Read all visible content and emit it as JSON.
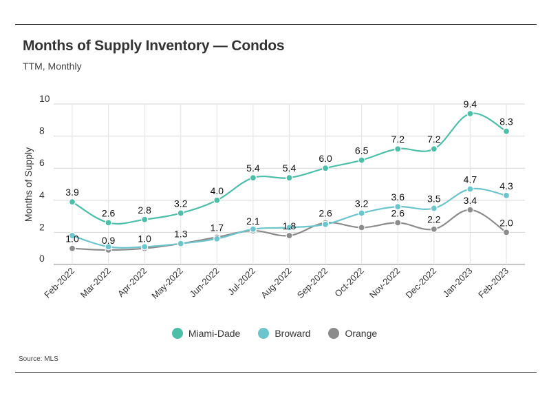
{
  "header": {
    "title": "Months of Supply Inventory — Condos",
    "subtitle": "TTM, Monthly"
  },
  "footer": {
    "source": "Source: MLS"
  },
  "colors": {
    "Miami-Dade": "#4dbfa8",
    "Broward": "#6cc4cc",
    "Orange": "#8c8c8c"
  },
  "chart_data": {
    "type": "line",
    "title": "Months of Supply Inventory — Condos",
    "subtitle": "TTM, Monthly",
    "xlabel": "",
    "ylabel": "Months of Supply",
    "ylim": [
      0,
      10
    ],
    "yticks": [
      0,
      2,
      4,
      6,
      8,
      10
    ],
    "grid": true,
    "legend": "bottom",
    "categories": [
      "Feb-2022",
      "Mar-2022",
      "Apr-2022",
      "May-2022",
      "Jun-2022",
      "Jul-2022",
      "Aug-2022",
      "Sep-2022",
      "Oct-2022",
      "Nov-2022",
      "Dec-2022",
      "Jan-2023",
      "Feb-2023"
    ],
    "series": [
      {
        "name": "Miami-Dade",
        "values": [
          3.9,
          2.6,
          2.8,
          3.2,
          4.0,
          5.4,
          5.4,
          6.0,
          6.5,
          7.2,
          7.2,
          9.4,
          8.3
        ],
        "labels": [
          "3.9",
          "2.6",
          "2.8",
          "3.2",
          "4.0",
          "5.4",
          "5.4",
          "6.0",
          "6.5",
          "7.2",
          "7.2",
          "9.4",
          "8.3"
        ]
      },
      {
        "name": "Broward",
        "values": [
          1.8,
          1.1,
          1.1,
          1.3,
          1.6,
          2.2,
          2.3,
          2.5,
          3.2,
          3.6,
          3.5,
          4.7,
          4.3
        ],
        "labels": [
          "",
          "",
          "",
          "",
          "",
          "",
          "",
          "",
          "3.2",
          "3.6",
          "3.5",
          "4.7",
          "4.3"
        ]
      },
      {
        "name": "Orange",
        "values": [
          1.0,
          0.9,
          1.0,
          1.3,
          1.7,
          2.1,
          1.8,
          2.6,
          2.3,
          2.6,
          2.2,
          3.4,
          2.0
        ],
        "labels": [
          "1.0",
          "0.9",
          "1.0",
          "1.3",
          "1.7",
          "2.1",
          "1.8",
          "2.6",
          "",
          "2.6",
          "2.2",
          "3.4",
          "2.0"
        ]
      }
    ]
  }
}
